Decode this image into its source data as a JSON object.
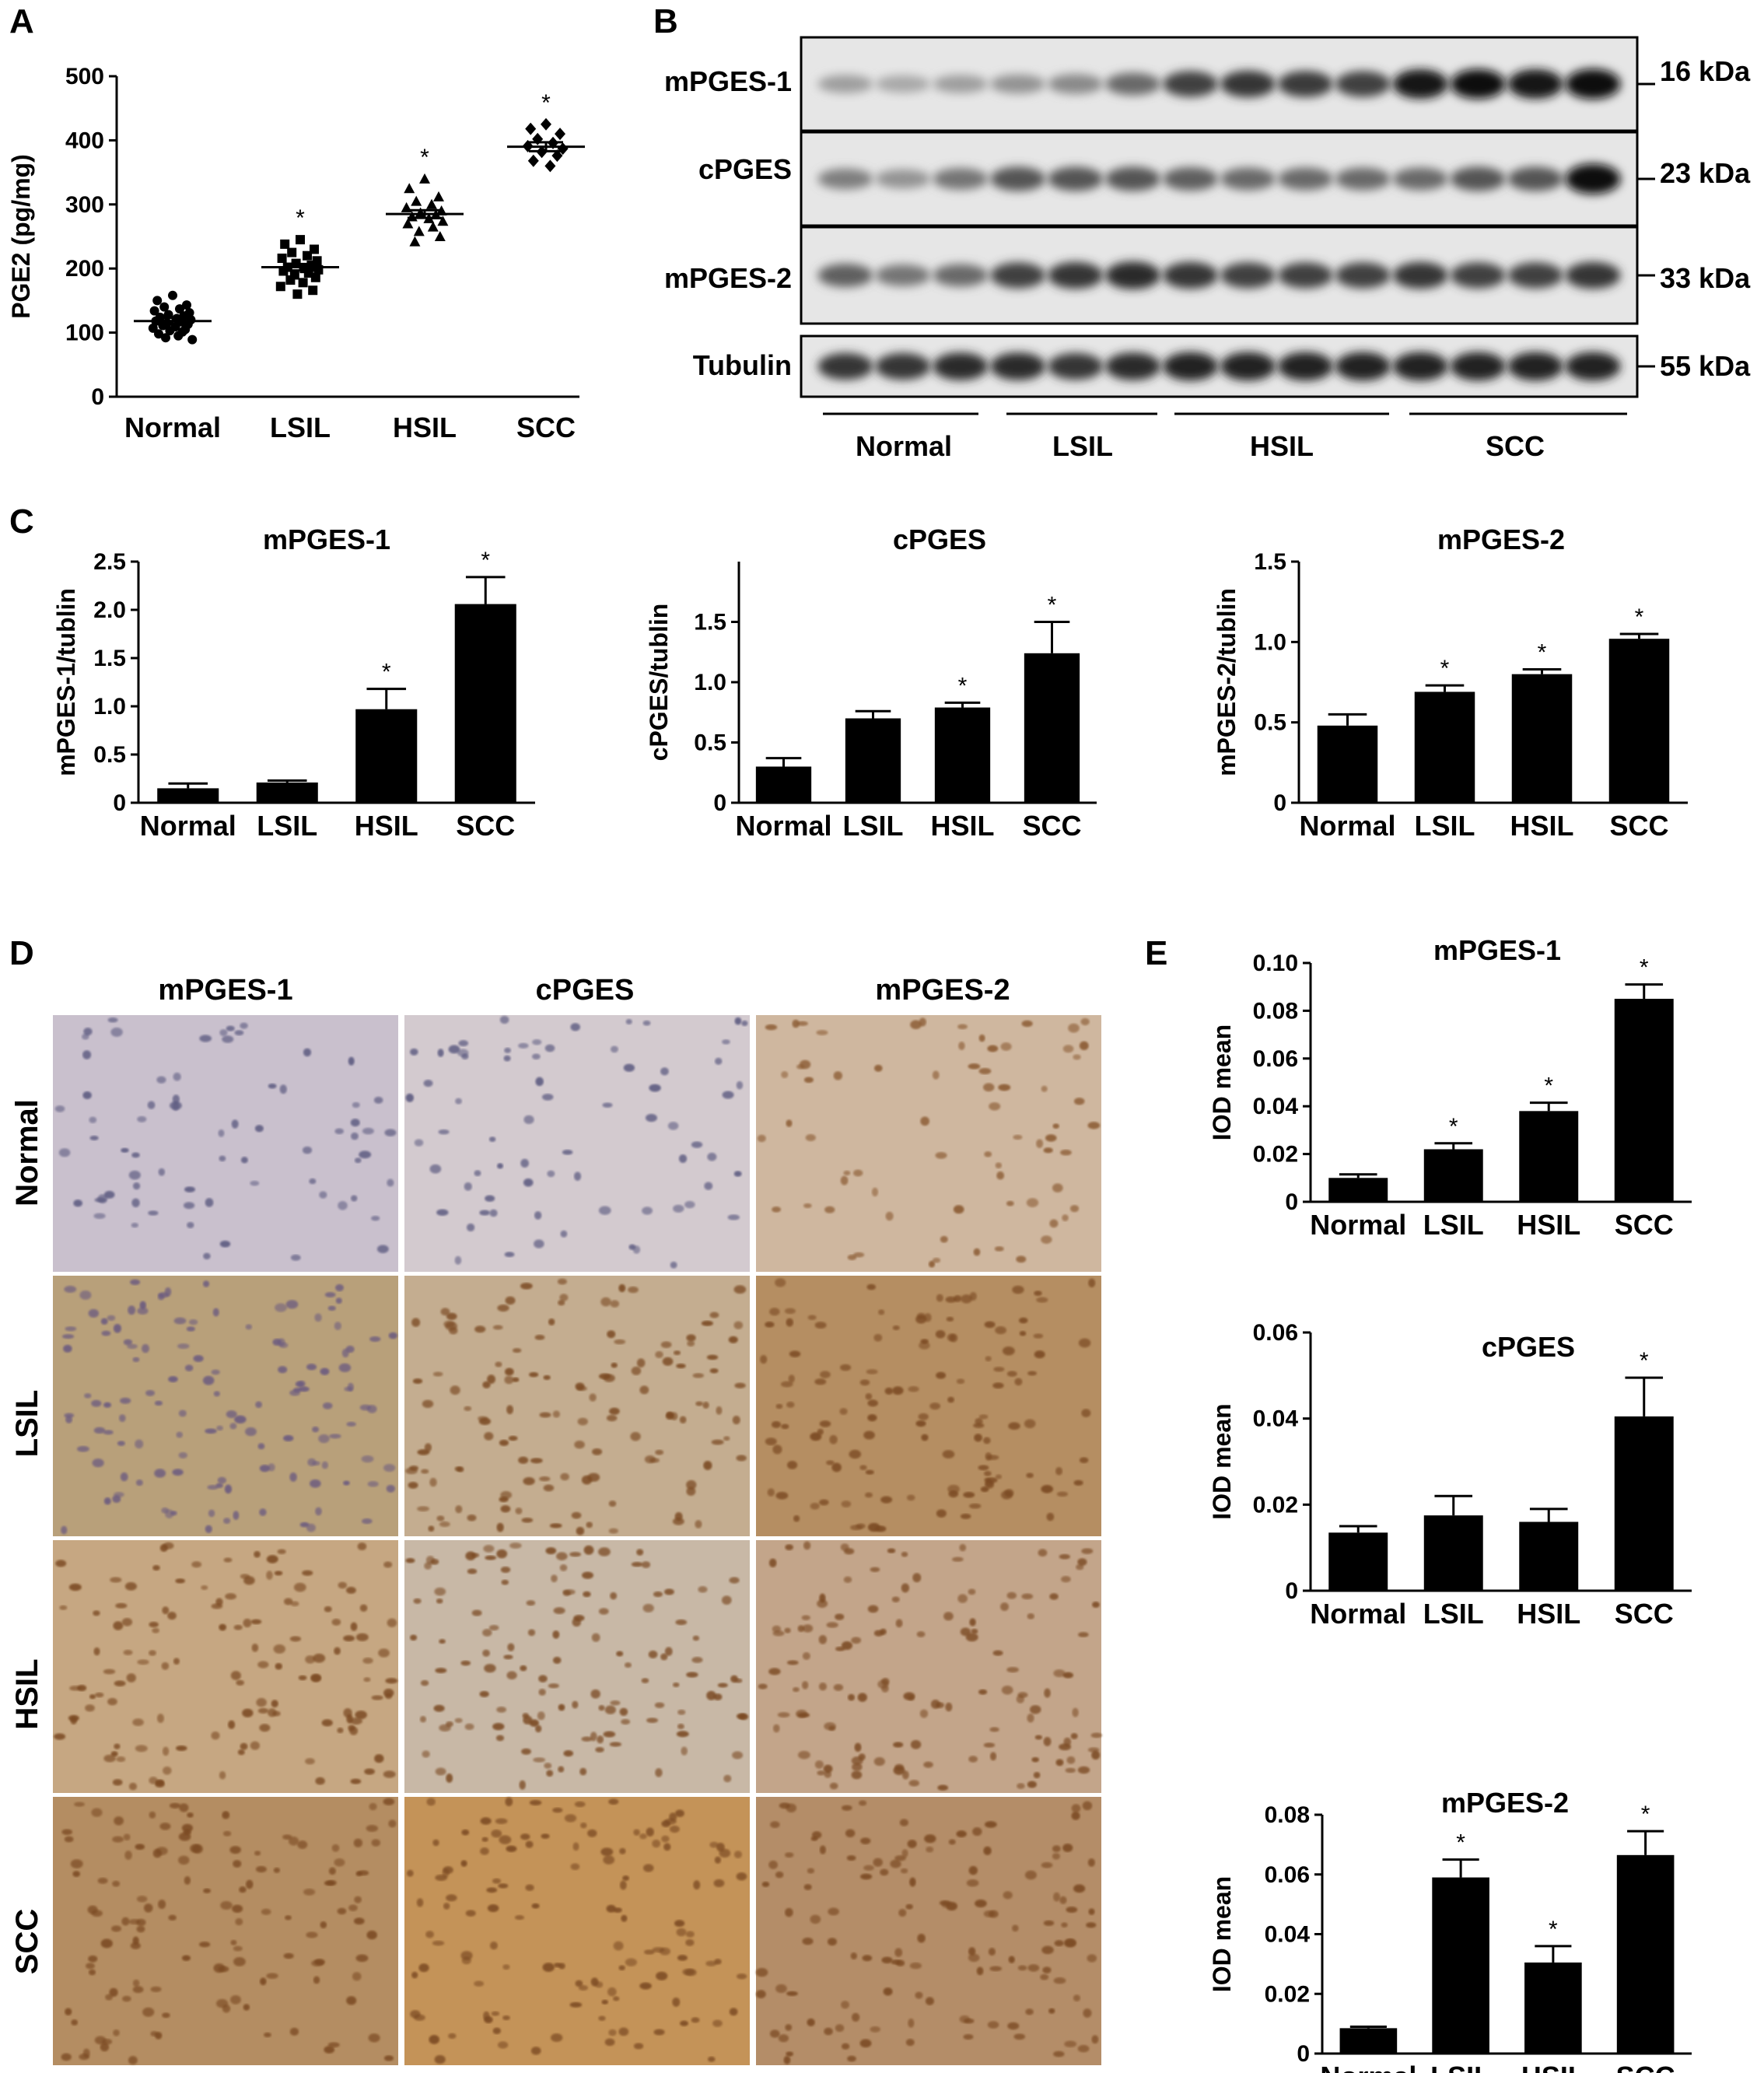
{
  "panels": [
    "A",
    "B",
    "C",
    "D",
    "E"
  ],
  "categories": [
    "Normal",
    "LSIL",
    "HSIL",
    "SCC"
  ],
  "chart_data": [
    {
      "id": "A",
      "type": "scatter",
      "ylabel": "PGE2 (pg/mg)",
      "ylim": [
        0,
        500
      ],
      "yticks": [
        0,
        100,
        200,
        300,
        400,
        500
      ],
      "categories": [
        "Normal",
        "LSIL",
        "HSIL",
        "SCC"
      ],
      "means": [
        118,
        202,
        285,
        390
      ],
      "sem": [
        5,
        5,
        6,
        7
      ],
      "points": [
        [
          158,
          150,
          143,
          140,
          137,
          134,
          131,
          128,
          126,
          124,
          122,
          120,
          118,
          117,
          115,
          113,
          111,
          109,
          107,
          105,
          103,
          101,
          98,
          95,
          92,
          89
        ],
        [
          245,
          238,
          230,
          225,
          220,
          216,
          212,
          208,
          205,
          202,
          200,
          198,
          196,
          193,
          190,
          186,
          182,
          178,
          172,
          166,
          160
        ],
        [
          340,
          325,
          312,
          305,
          300,
          295,
          290,
          287,
          284,
          281,
          278,
          274,
          270,
          265,
          258,
          250,
          242
        ],
        [
          425,
          418,
          410,
          402,
          396,
          391,
          387,
          382,
          376,
          368,
          360
        ]
      ],
      "markers": [
        "circle",
        "square",
        "triangle",
        "diamond"
      ],
      "significance": [
        "",
        "*",
        "*",
        "*"
      ]
    },
    {
      "id": "C1",
      "type": "bar",
      "title": "mPGES-1",
      "ylabel": "mPGES-1/tublin",
      "ylim": [
        0,
        2.5
      ],
      "yticks": [
        "0",
        "0.5",
        "1.0",
        "1.5",
        "2.0",
        "2.5"
      ],
      "categories": [
        "Normal",
        "LSIL",
        "HSIL",
        "SCC"
      ],
      "values": [
        0.15,
        0.21,
        0.97,
        2.06
      ],
      "errors": [
        0.05,
        0.02,
        0.21,
        0.28
      ],
      "significance": [
        "",
        "",
        "*",
        "*"
      ]
    },
    {
      "id": "C2",
      "type": "bar",
      "title": "cPGES",
      "ylabel": "cPGES/tublin",
      "ylim": [
        0,
        2.0
      ],
      "yticks": [
        "0",
        "0.5",
        "1.0",
        "1.5"
      ],
      "categories": [
        "Normal",
        "LSIL",
        "HSIL",
        "SCC"
      ],
      "values": [
        0.3,
        0.7,
        0.79,
        1.24
      ],
      "errors": [
        0.07,
        0.06,
        0.04,
        0.26
      ],
      "significance": [
        "",
        "",
        "*",
        "*"
      ]
    },
    {
      "id": "C3",
      "type": "bar",
      "title": "mPGES-2",
      "ylabel": "mPGES-2/tublin",
      "ylim": [
        0,
        1.5
      ],
      "yticks": [
        "0",
        "0.5",
        "1.0",
        "1.5"
      ],
      "categories": [
        "Normal",
        "LSIL",
        "HSIL",
        "SCC"
      ],
      "values": [
        0.48,
        0.69,
        0.8,
        1.02
      ],
      "errors": [
        0.07,
        0.04,
        0.03,
        0.03
      ],
      "significance": [
        "",
        "*",
        "*",
        "*"
      ]
    },
    {
      "id": "E1",
      "type": "bar",
      "title": "mPGES-1",
      "ylabel": "IOD mean",
      "ylim": [
        0,
        0.1
      ],
      "yticks": [
        "0",
        "0.02",
        "0.04",
        "0.06",
        "0.08",
        "0.10"
      ],
      "categories": [
        "Normal",
        "LSIL",
        "HSIL",
        "SCC"
      ],
      "values": [
        0.01,
        0.022,
        0.038,
        0.085
      ],
      "errors": [
        0.0015,
        0.0025,
        0.0035,
        0.006
      ],
      "significance": [
        "",
        "*",
        "*",
        "*"
      ]
    },
    {
      "id": "E2",
      "type": "bar",
      "title": "cPGES",
      "ylabel": "IOD mean",
      "ylim": [
        0,
        0.06
      ],
      "yticks": [
        "0",
        "0.02",
        "0.04",
        "0.06"
      ],
      "categories": [
        "Normal",
        "LSIL",
        "HSIL",
        "SCC"
      ],
      "values": [
        0.0135,
        0.0175,
        0.016,
        0.0405
      ],
      "errors": [
        0.0015,
        0.0045,
        0.003,
        0.009
      ],
      "significance": [
        "",
        "",
        "",
        "*"
      ]
    },
    {
      "id": "E3",
      "type": "bar",
      "title": "mPGES-2",
      "ylabel": "IOD mean",
      "ylim": [
        0,
        0.08
      ],
      "yticks": [
        "0",
        "0.02",
        "0.04",
        "0.06",
        "0.08"
      ],
      "categories": [
        "Normal",
        "LSIL",
        "HSIL",
        "SCC"
      ],
      "values": [
        0.0085,
        0.059,
        0.0305,
        0.0665
      ],
      "errors": [
        0.0005,
        0.006,
        0.0055,
        0.008
      ],
      "significance": [
        "",
        "*",
        "*",
        "*"
      ]
    }
  ],
  "western_blot": {
    "rows": [
      "mPGES-1",
      "cPGES",
      "mPGES-2",
      "Tubulin"
    ],
    "sizes": [
      "16 kDa",
      "23 kDa",
      "33 kDa",
      "55 kDa"
    ],
    "groups": [
      "Normal",
      "LSIL",
      "HSIL",
      "SCC"
    ],
    "band_intensity": [
      [
        0.25,
        0.2,
        0.25,
        0.3,
        0.35,
        0.5,
        0.7,
        0.75,
        0.72,
        0.7,
        0.9,
        0.92,
        0.9,
        0.95
      ],
      [
        0.4,
        0.3,
        0.45,
        0.6,
        0.6,
        0.6,
        0.55,
        0.5,
        0.5,
        0.5,
        0.5,
        0.6,
        0.6,
        0.95
      ],
      [
        0.55,
        0.45,
        0.5,
        0.7,
        0.75,
        0.8,
        0.75,
        0.7,
        0.7,
        0.7,
        0.75,
        0.7,
        0.7,
        0.75
      ],
      [
        0.75,
        0.75,
        0.8,
        0.8,
        0.75,
        0.8,
        0.85,
        0.85,
        0.85,
        0.85,
        0.85,
        0.85,
        0.85,
        0.85
      ]
    ]
  },
  "ihc": {
    "columns": [
      "mPGES-1",
      "cPGES",
      "mPGES-2"
    ],
    "rows": [
      "Normal",
      "LSIL",
      "HSIL",
      "SCC"
    ],
    "tissue_colors": [
      [
        "#c9c0cd",
        "#d3cacf",
        "#cfb79f"
      ],
      [
        "#b8a07a",
        "#c4ad90",
        "#b58e62"
      ],
      [
        "#c6a782",
        "#c8b8a6",
        "#c3a58a"
      ],
      [
        "#b48d62",
        "#c49358",
        "#b48d68"
      ]
    ]
  }
}
